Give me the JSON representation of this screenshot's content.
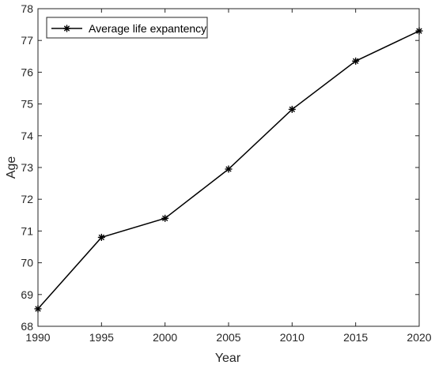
{
  "chart_data": {
    "type": "line",
    "title": "",
    "xlabel": "Year",
    "ylabel": "Age",
    "xlim": [
      1990,
      2020
    ],
    "ylim": [
      68,
      78
    ],
    "x_ticks": [
      "1990",
      "1995",
      "2000",
      "2005",
      "2010",
      "2015",
      "2020"
    ],
    "y_ticks": [
      "68",
      "69",
      "70",
      "71",
      "72",
      "73",
      "74",
      "75",
      "76",
      "77",
      "78"
    ],
    "grid": false,
    "legend_position": "top-left",
    "series": [
      {
        "name": "Average life expantency",
        "color": "#000000",
        "marker": "asterisk",
        "x": [
          1990,
          1995,
          2000,
          2005,
          2010,
          2015,
          2020
        ],
        "y": [
          68.55,
          70.8,
          71.4,
          72.95,
          74.83,
          76.35,
          77.3
        ]
      }
    ]
  }
}
